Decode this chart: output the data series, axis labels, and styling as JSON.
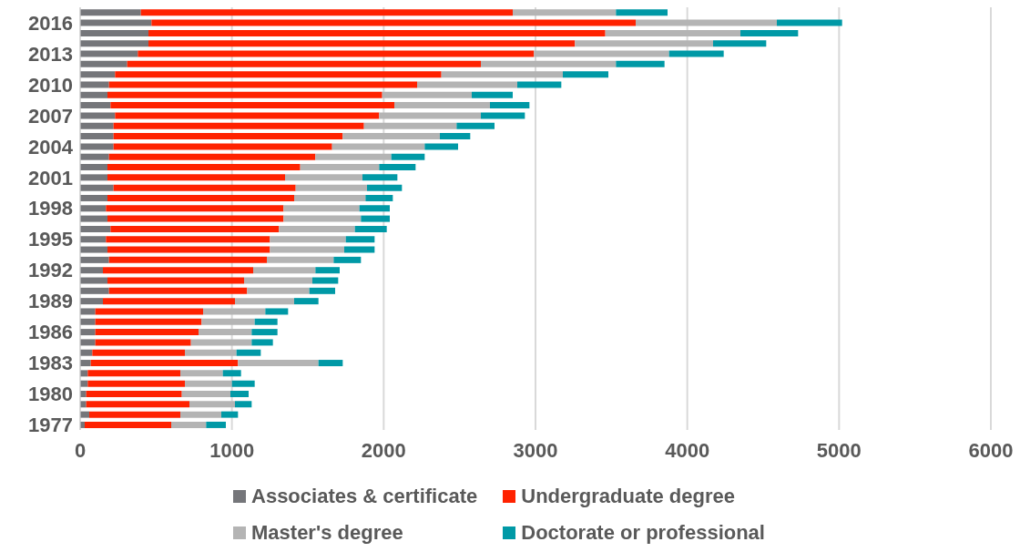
{
  "chart_data": {
    "type": "bar",
    "orientation": "horizontal",
    "stacked": true,
    "categories": [
      null,
      "2016",
      null,
      null,
      "2013",
      null,
      null,
      "2010",
      null,
      null,
      "2007",
      null,
      null,
      "2004",
      null,
      null,
      "2001",
      null,
      null,
      "1998",
      null,
      null,
      "1995",
      null,
      null,
      "1992",
      null,
      null,
      "1989",
      null,
      null,
      "1986",
      null,
      null,
      "1983",
      null,
      null,
      "1980",
      null,
      null,
      "1977"
    ],
    "series": [
      {
        "name": "Associates & certificate",
        "color": "#75767a",
        "values": [
          400,
          470,
          450,
          450,
          380,
          310,
          230,
          190,
          180,
          200,
          230,
          220,
          220,
          220,
          190,
          180,
          180,
          220,
          180,
          170,
          180,
          200,
          170,
          180,
          190,
          150,
          180,
          190,
          150,
          100,
          100,
          100,
          100,
          80,
          70,
          50,
          50,
          40,
          40,
          60,
          30
        ]
      },
      {
        "name": "Undergraduate degree",
        "color": "#ff2200",
        "values": [
          2450,
          3190,
          3010,
          2810,
          2610,
          2330,
          2150,
          2030,
          1810,
          1870,
          1740,
          1650,
          1510,
          1440,
          1360,
          1270,
          1170,
          1200,
          1230,
          1170,
          1160,
          1110,
          1080,
          1070,
          1040,
          990,
          900,
          910,
          870,
          710,
          700,
          680,
          630,
          610,
          970,
          610,
          640,
          630,
          680,
          600,
          570
        ]
      },
      {
        "name": "Master's degree",
        "color": "#b4b4b4",
        "values": [
          680,
          930,
          890,
          910,
          890,
          890,
          800,
          660,
          590,
          630,
          670,
          610,
          640,
          610,
          500,
          520,
          510,
          470,
          470,
          500,
          510,
          500,
          500,
          490,
          440,
          410,
          450,
          410,
          390,
          410,
          350,
          350,
          400,
          340,
          530,
          280,
          310,
          320,
          300,
          270,
          230
        ]
      },
      {
        "name": "Doctorate or professional",
        "color": "#0099a6",
        "values": [
          340,
          430,
          380,
          350,
          360,
          320,
          300,
          290,
          270,
          260,
          290,
          250,
          200,
          220,
          220,
          240,
          230,
          230,
          180,
          200,
          190,
          210,
          190,
          200,
          180,
          160,
          170,
          170,
          160,
          150,
          150,
          170,
          140,
          160,
          160,
          120,
          150,
          120,
          110,
          110,
          130
        ]
      }
    ],
    "xlim": [
      0,
      6000
    ],
    "xticks": [
      0,
      1000,
      2000,
      3000,
      4000,
      5000,
      6000
    ],
    "grid": "x",
    "legend": "bottom"
  }
}
